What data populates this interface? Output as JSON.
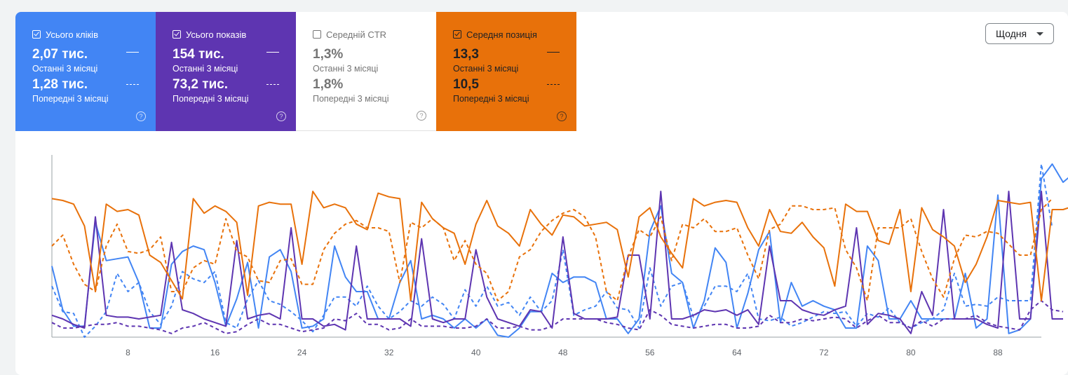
{
  "metrics": [
    {
      "key": "clicks",
      "label": "Усього кліків",
      "checked": true,
      "current_value": "2,07 тис.",
      "current_period": "Останні 3 місяці",
      "previous_value": "1,28 тис.",
      "previous_period": "Попередні 3 місяці",
      "color": "#4285f4"
    },
    {
      "key": "impressions",
      "label": "Усього показів",
      "checked": true,
      "current_value": "154 тис.",
      "current_period": "Останні 3 місяці",
      "previous_value": "73,2 тис.",
      "previous_period": "Попередні 3 місяці",
      "color": "#5e35b1"
    },
    {
      "key": "ctr",
      "label": "Середній CTR",
      "checked": false,
      "current_value": "1,3%",
      "current_period": "Останні 3 місяці",
      "previous_value": "1,8%",
      "previous_period": "Попередні 3 місяці",
      "color": "#ffffff"
    },
    {
      "key": "position",
      "label": "Середня позиція",
      "checked": true,
      "current_value": "13,3",
      "current_period": "Останні 3 місяці",
      "previous_value": "10,5",
      "previous_period": "Попередні 3 місяці",
      "color": "#e8710a"
    }
  ],
  "help_glyph": "?",
  "granularity": {
    "selected": "Щодня"
  },
  "chart_data": {
    "type": "line",
    "x_ticks": [
      8,
      16,
      24,
      32,
      40,
      48,
      56,
      64,
      72,
      80,
      88
    ],
    "xlim": [
      1,
      92
    ],
    "ylim": [
      0,
      100
    ],
    "grid": false,
    "series": [
      {
        "metric": "Усього кліків",
        "period": "Останні 3 місяці",
        "style": "solid",
        "color": "#4285f4",
        "values": [
          39,
          15,
          6,
          6,
          63,
          42,
          43,
          44,
          30,
          5,
          5,
          40,
          47,
          50,
          48,
          30,
          6,
          21,
          41,
          5,
          44,
          48,
          36,
          5,
          6,
          10,
          50,
          33,
          25,
          25,
          10,
          10,
          30,
          42,
          10,
          12,
          10,
          5,
          10,
          5,
          10,
          1,
          0,
          5,
          14,
          14,
          35,
          30,
          33,
          33,
          30,
          10,
          10,
          2,
          10,
          58,
          72,
          35,
          30,
          5,
          20,
          49,
          41,
          5,
          24,
          48,
          58,
          8,
          30,
          17,
          20,
          17,
          15,
          5,
          5,
          50,
          42,
          10,
          10,
          20,
          10,
          10,
          10,
          10,
          35,
          5,
          10,
          78,
          2,
          4,
          10,
          87,
          95,
          85,
          90
        ]
      },
      {
        "metric": "Усього кліків",
        "period": "Попередні 3 місяці",
        "style": "dashed",
        "color": "#4285f4",
        "values": [
          28,
          14,
          13,
          0,
          6,
          14,
          35,
          25,
          30,
          14,
          7,
          17,
          36,
          32,
          30,
          36,
          8,
          5,
          21,
          31,
          20,
          18,
          14,
          9,
          3,
          12,
          22,
          22,
          17,
          28,
          17,
          10,
          14,
          20,
          17,
          22,
          18,
          10,
          26,
          17,
          28,
          17,
          19,
          12,
          22,
          14,
          20,
          48,
          12,
          15,
          17,
          25,
          16,
          15,
          5,
          38,
          17,
          28,
          30,
          11,
          17,
          28,
          28,
          25,
          35,
          10,
          9,
          11,
          6,
          8,
          11,
          14,
          13,
          14,
          6,
          13,
          11,
          16,
          8,
          5,
          8,
          10,
          15,
          35,
          17,
          18,
          17,
          22,
          20,
          20,
          20,
          95,
          60
        ]
      },
      {
        "metric": "Усього показів",
        "period": "Останні 3 місяці",
        "style": "solid",
        "color": "#5e35b1",
        "values": [
          12,
          10,
          7,
          5,
          66,
          12,
          11,
          11,
          10,
          11,
          12,
          52,
          15,
          13,
          10,
          8,
          6,
          53,
          10,
          12,
          13,
          10,
          60,
          10,
          10,
          6,
          7,
          4,
          50,
          10,
          10,
          10,
          10,
          6,
          54,
          10,
          8,
          10,
          10,
          48,
          22,
          10,
          8,
          6,
          15,
          14,
          5,
          55,
          13,
          10,
          10,
          10,
          11,
          45,
          45,
          10,
          80,
          10,
          10,
          12,
          15,
          14,
          15,
          12,
          15,
          7,
          50,
          20,
          20,
          15,
          13,
          12,
          15,
          17,
          60,
          7,
          13,
          12,
          10,
          2,
          25,
          12,
          70,
          10,
          10,
          10,
          7,
          5,
          80,
          10,
          10,
          80,
          10,
          10
        ]
      },
      {
        "metric": "Усього показів",
        "period": "Попередні 3 місяці",
        "style": "dashed",
        "color": "#5e35b1",
        "values": [
          8,
          5,
          5,
          6,
          7,
          7,
          8,
          6,
          6,
          5,
          4,
          2,
          5,
          6,
          8,
          5,
          2,
          3,
          7,
          10,
          7,
          7,
          5,
          3,
          4,
          5,
          10,
          9,
          13,
          7,
          7,
          4,
          5,
          10,
          6,
          6,
          6,
          5,
          5,
          6,
          10,
          5,
          5,
          6,
          4,
          4,
          6,
          10,
          10,
          10,
          10,
          8,
          7,
          5,
          4,
          15,
          12,
          7,
          6,
          5,
          6,
          7,
          7,
          5,
          5,
          6,
          12,
          8,
          8,
          10,
          9,
          10,
          11,
          10,
          5,
          9,
          12,
          8,
          8,
          5,
          9,
          6,
          10,
          10,
          10,
          12,
          8,
          6,
          5,
          4,
          15,
          20,
          15,
          14
        ]
      },
      {
        "metric": "Середня позиція",
        "period": "Останні 3 місяці",
        "style": "solid",
        "color": "#e8710a",
        "values": [
          76,
          75,
          73,
          61,
          25,
          73,
          69,
          70,
          67,
          45,
          41,
          31,
          21,
          76,
          68,
          72,
          69,
          63,
          23,
          72,
          74,
          73,
          73,
          40,
          80,
          71,
          73,
          71,
          62,
          59,
          79,
          77,
          76,
          20,
          74,
          65,
          60,
          57,
          40,
          62,
          75,
          61,
          57,
          50,
          70,
          62,
          56,
          67,
          66,
          61,
          62,
          63,
          59,
          33,
          66,
          71,
          55,
          46,
          38,
          76,
          72,
          74,
          75,
          74,
          60,
          50,
          70,
          58,
          57,
          63,
          55,
          49,
          28,
          73,
          69,
          69,
          53,
          51,
          70,
          25,
          71,
          59,
          55,
          50,
          30,
          40,
          55,
          75,
          74,
          73,
          74,
          20,
          70,
          70,
          72
        ]
      },
      {
        "metric": "Середня позиція",
        "period": "Попередні 3 місяці",
        "style": "dashed",
        "color": "#e8710a",
        "values": [
          50,
          56,
          40,
          29,
          25,
          50,
          62,
          47,
          46,
          48,
          55,
          25,
          25,
          38,
          42,
          40,
          65,
          47,
          44,
          31,
          30,
          42,
          43,
          29,
          29,
          48,
          57,
          62,
          64,
          60,
          60,
          58,
          30,
          63,
          60,
          65,
          60,
          42,
          53,
          40,
          35,
          20,
          25,
          44,
          48,
          58,
          64,
          68,
          70,
          66,
          55,
          25,
          20,
          44,
          59,
          55,
          66,
          42,
          62,
          60,
          65,
          58,
          58,
          60,
          45,
          32,
          59,
          62,
          72,
          72,
          70,
          70,
          71,
          48,
          38,
          20,
          60,
          60,
          60,
          65,
          47,
          32,
          22,
          43,
          56,
          55,
          58,
          57,
          51,
          45,
          45,
          70,
          76
        ]
      }
    ]
  }
}
